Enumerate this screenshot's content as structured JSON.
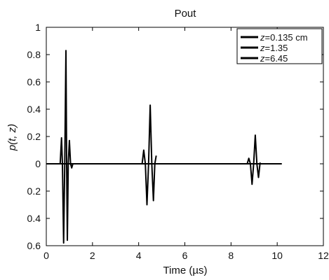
{
  "chart_data": {
    "type": "line",
    "title": "Pout",
    "xlabel": "Time (µs)",
    "ylabel": "p(t, z)",
    "xlim": [
      0,
      12
    ],
    "ylim": [
      -0.6,
      1.0
    ],
    "x_ticks": [
      0,
      2,
      4,
      6,
      8,
      10,
      12
    ],
    "x_tick_labels": [
      "0",
      "2",
      "4",
      "6",
      "8",
      "10",
      "12"
    ],
    "y_ticks": [
      1.0,
      0.8,
      0.6,
      0.4,
      0.2,
      0.0,
      -0.2,
      -0.4,
      -0.6
    ],
    "y_tick_labels": [
      "1",
      "0.8",
      "0.6",
      "0.4",
      "0.2",
      "0",
      "0.2",
      "0.4",
      "0.6"
    ],
    "grid": false,
    "legend_position": "top-right",
    "line_color": "#000000",
    "baseline_x_range": [
      0,
      10.2
    ],
    "series": [
      {
        "name": "z=0.135 cm",
        "legend_var": "z",
        "legend_rest": "=0.135 cm",
        "x": [
          0.6,
          0.66,
          0.7,
          0.75,
          0.8,
          0.85,
          0.88,
          0.91,
          0.95,
          1.0,
          1.05,
          1.1,
          1.15,
          1.2
        ],
        "y": [
          0.0,
          0.19,
          0.0,
          -0.58,
          0.0,
          0.83,
          0.0,
          -0.56,
          0.0,
          0.17,
          0.0,
          -0.03,
          0.0,
          0.0
        ]
      },
      {
        "name": "z=1.35",
        "legend_var": "z",
        "legend_rest": "=1.35",
        "x": [
          4.15,
          4.22,
          4.29,
          4.36,
          4.43,
          4.5,
          4.57,
          4.64,
          4.7,
          4.76
        ],
        "y": [
          0.0,
          0.1,
          0.0,
          -0.3,
          0.0,
          0.43,
          0.0,
          -0.27,
          0.0,
          0.06
        ]
      },
      {
        "name": "z=6.45",
        "legend_var": "z",
        "legend_rest": "=6.45",
        "x": [
          8.7,
          8.77,
          8.84,
          8.91,
          8.98,
          9.05,
          9.12,
          9.19,
          9.26
        ],
        "y": [
          0.0,
          0.04,
          0.0,
          -0.15,
          0.0,
          0.21,
          0.0,
          -0.1,
          0.01
        ]
      }
    ]
  }
}
